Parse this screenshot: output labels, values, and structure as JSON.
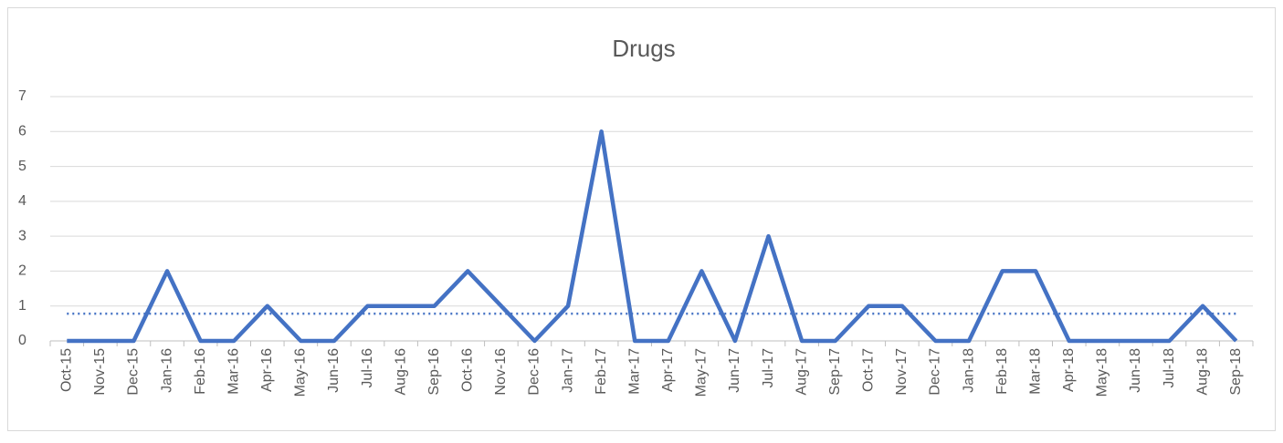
{
  "chart_data": {
    "type": "line",
    "title": "Drugs",
    "categories": [
      "Oct-15",
      "Nov-15",
      "Dec-15",
      "Jan-16",
      "Feb-16",
      "Mar-16",
      "Apr-16",
      "May-16",
      "Jun-16",
      "Jul-16",
      "Aug-16",
      "Sep-16",
      "Oct-16",
      "Nov-16",
      "Dec-16",
      "Jan-17",
      "Feb-17",
      "Mar-17",
      "Apr-17",
      "May-17",
      "Jun-17",
      "Jul-17",
      "Aug-17",
      "Sep-17",
      "Oct-17",
      "Nov-17",
      "Dec-17",
      "Jan-18",
      "Feb-18",
      "Mar-18",
      "Apr-18",
      "May-18",
      "Jun-18",
      "Jul-18",
      "Aug-18",
      "Sep-18"
    ],
    "values": [
      0,
      0,
      0,
      2,
      0,
      0,
      1,
      0,
      0,
      1,
      1,
      1,
      2,
      1,
      0,
      1,
      6,
      0,
      0,
      2,
      0,
      3,
      0,
      0,
      1,
      1,
      0,
      0,
      2,
      2,
      0,
      0,
      0,
      0,
      1,
      0
    ],
    "color": "#4472c4",
    "average": 0.78,
    "ylim": [
      0,
      7
    ],
    "yticks": [
      0,
      1,
      2,
      3,
      4,
      5,
      6,
      7
    ],
    "grid": true
  }
}
